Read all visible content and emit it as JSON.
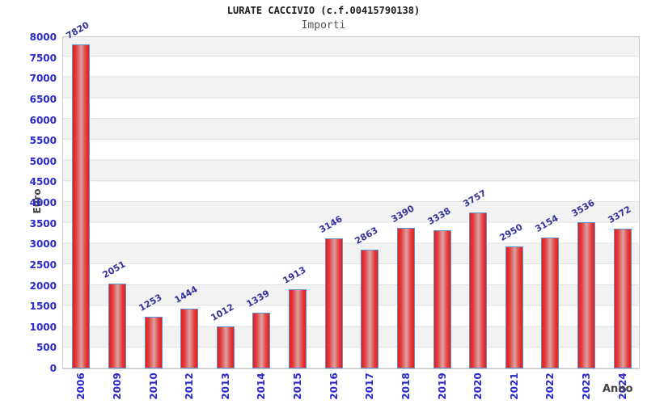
{
  "header": {
    "title": "LURATE CACCIVIO (c.f.00415790138)",
    "subtitle": "Importi"
  },
  "chart_data": {
    "type": "bar",
    "title": "LURATE CACCIVIO (c.f.00415790138)",
    "subtitle": "Importi",
    "xlabel": "Anno",
    "ylabel": "Euro",
    "categories": [
      "2006",
      "2009",
      "2010",
      "2012",
      "2013",
      "2014",
      "2015",
      "2016",
      "2017",
      "2018",
      "2019",
      "2020",
      "2021",
      "2022",
      "2023",
      "2024"
    ],
    "values": [
      7820,
      2051,
      1253,
      1444,
      1012,
      1339,
      1913,
      3146,
      2863,
      3390,
      3338,
      3757,
      2950,
      3154,
      3536,
      3372
    ],
    "ylim": [
      0,
      8000
    ],
    "ytick_step": 500,
    "yticks": [
      0,
      500,
      1000,
      1500,
      2000,
      2500,
      3000,
      3500,
      4000,
      4500,
      5000,
      5500,
      6000,
      6500,
      7000,
      7500,
      8000
    ],
    "grid": true,
    "legend": null,
    "colors": {
      "bar_fill_edge": "#ea1b1b",
      "bar_fill_center": "#dda2a2",
      "bar_border": "#5b93cf",
      "value_label": "#333399",
      "tick_label": "#2929cc",
      "axis_title": "#444444",
      "band": "#f2f2f2",
      "gridline": "#e2e2e2",
      "plot_border": "#c9c9c9"
    }
  }
}
